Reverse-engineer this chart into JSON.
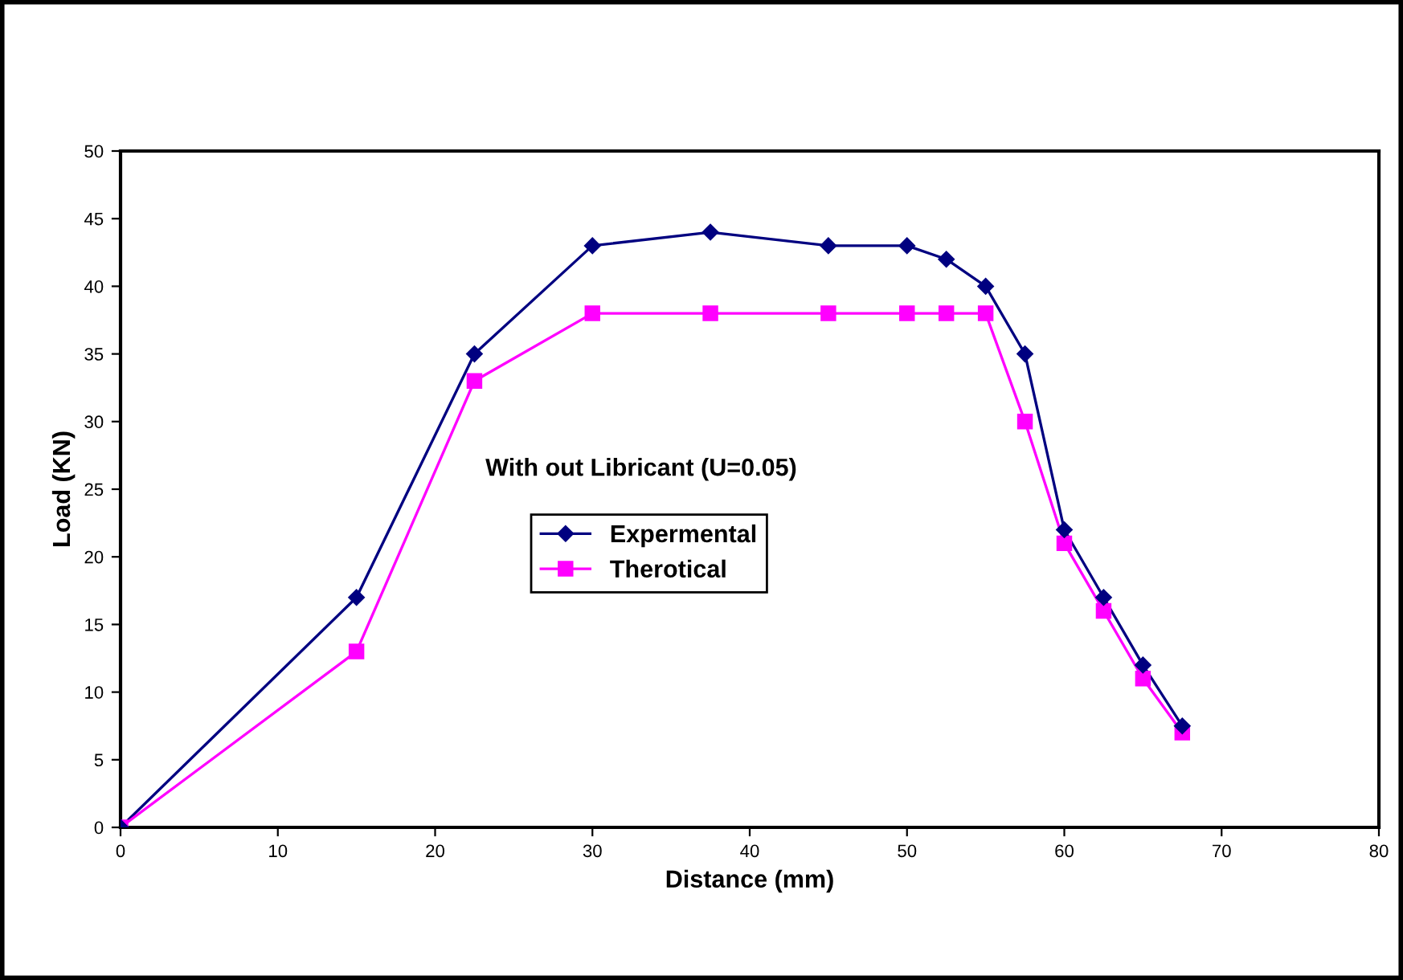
{
  "chart_data": {
    "type": "line",
    "xlabel": "Distance (mm)",
    "ylabel": "Load (KN)",
    "annotations": [
      "With out Libricant (U=0.05)"
    ],
    "x": [
      0,
      15,
      22.5,
      30,
      37.5,
      45,
      50,
      52.5,
      55,
      57.5,
      60,
      62.5,
      65,
      67.5
    ],
    "series": [
      {
        "name": "Expermental",
        "color": "#000080",
        "marker": "diamond",
        "values": [
          0,
          17,
          35,
          43,
          44,
          43,
          43,
          42,
          40,
          35,
          22,
          17,
          12,
          7.5
        ]
      },
      {
        "name": "Therotical",
        "color": "#ff00ff",
        "marker": "square",
        "values": [
          0,
          13,
          33,
          38,
          38,
          38,
          38,
          38,
          38,
          30,
          21,
          16,
          11,
          7
        ]
      }
    ],
    "xlim": [
      0,
      80
    ],
    "xticks": [
      0,
      10,
      20,
      30,
      40,
      50,
      60,
      70,
      80
    ],
    "ylim": [
      0,
      50
    ],
    "yticks": [
      0,
      5,
      10,
      15,
      20,
      25,
      30,
      35,
      40,
      45,
      50
    ],
    "grid": false,
    "legend": "center",
    "line_style": "solid"
  }
}
